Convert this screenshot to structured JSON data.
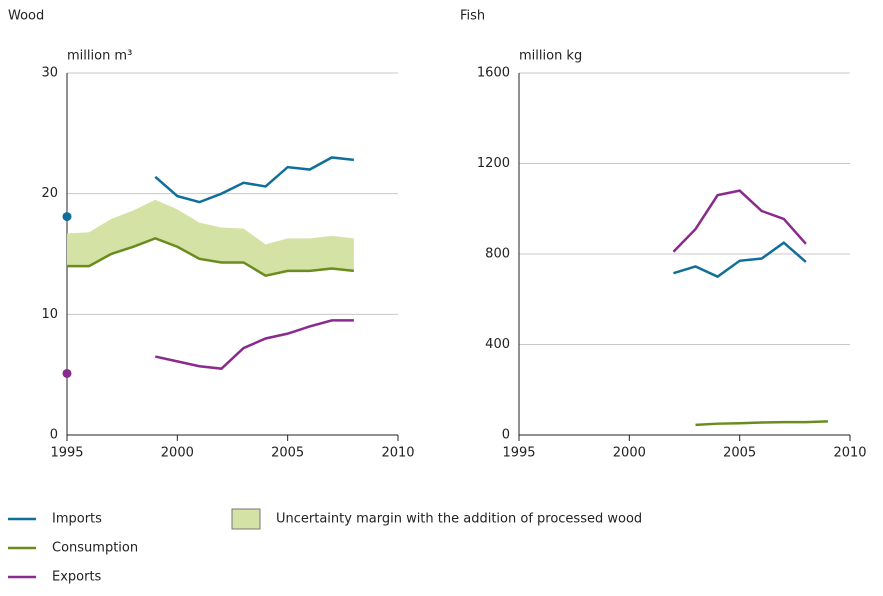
{
  "chart_data": [
    {
      "type": "line",
      "title": "Wood",
      "ylabel": "million m³",
      "x": [
        1995,
        1996,
        1997,
        1998,
        1999,
        2000,
        2001,
        2002,
        2003,
        2004,
        2005,
        2006,
        2007,
        2008
      ],
      "xlim": [
        1995,
        2010
      ],
      "xticks": [
        1995,
        2000,
        2005,
        2010
      ],
      "ylim": [
        0,
        30
      ],
      "yticks": [
        0,
        10,
        20,
        30
      ],
      "grid": true,
      "band": {
        "name": "Uncertainty margin with the addition of processed wood",
        "color": "#d4e2a6",
        "lower_series": 1,
        "values": [
          16.7,
          16.8,
          17.9,
          18.6,
          19.5,
          18.7,
          17.6,
          17.2,
          17.1,
          15.8,
          16.3,
          16.3,
          16.5,
          16.3
        ]
      },
      "series": [
        {
          "name": "Imports",
          "color": "#106f9a",
          "values": [
            18.1,
            null,
            null,
            null,
            21.4,
            19.8,
            19.3,
            20.0,
            20.9,
            20.6,
            22.2,
            22.0,
            23.0,
            22.8
          ]
        },
        {
          "name": "Consumption",
          "color": "#6a8c1e",
          "values": [
            14.0,
            14.0,
            15.0,
            15.6,
            16.3,
            15.6,
            14.6,
            14.3,
            14.3,
            13.2,
            13.6,
            13.6,
            13.8,
            13.6
          ]
        },
        {
          "name": "Exports",
          "color": "#8a2a8e",
          "values": [
            5.1,
            null,
            null,
            null,
            6.5,
            6.1,
            5.7,
            5.5,
            7.2,
            8.0,
            8.4,
            9.0,
            9.5,
            9.5
          ]
        }
      ]
    },
    {
      "type": "line",
      "title": "Fish",
      "ylabel": "million kg",
      "x": [
        2002,
        2003,
        2004,
        2005,
        2006,
        2007,
        2008,
        2009
      ],
      "xlim": [
        1995,
        2010
      ],
      "xticks": [
        1995,
        2000,
        2005,
        2010
      ],
      "ylim": [
        0,
        1600
      ],
      "yticks": [
        0,
        400,
        800,
        1200,
        1600
      ],
      "grid": true,
      "series": [
        {
          "color": "#106f9a",
          "values": [
            715,
            745,
            700,
            770,
            780,
            850,
            765,
            null
          ]
        },
        {
          "color": "#6a8c1e",
          "values": [
            null,
            45,
            50,
            52,
            55,
            57,
            57,
            60
          ]
        },
        {
          "color": "#8a2a8e",
          "values": [
            810,
            910,
            1060,
            1080,
            990,
            955,
            845,
            null
          ]
        }
      ]
    }
  ]
}
